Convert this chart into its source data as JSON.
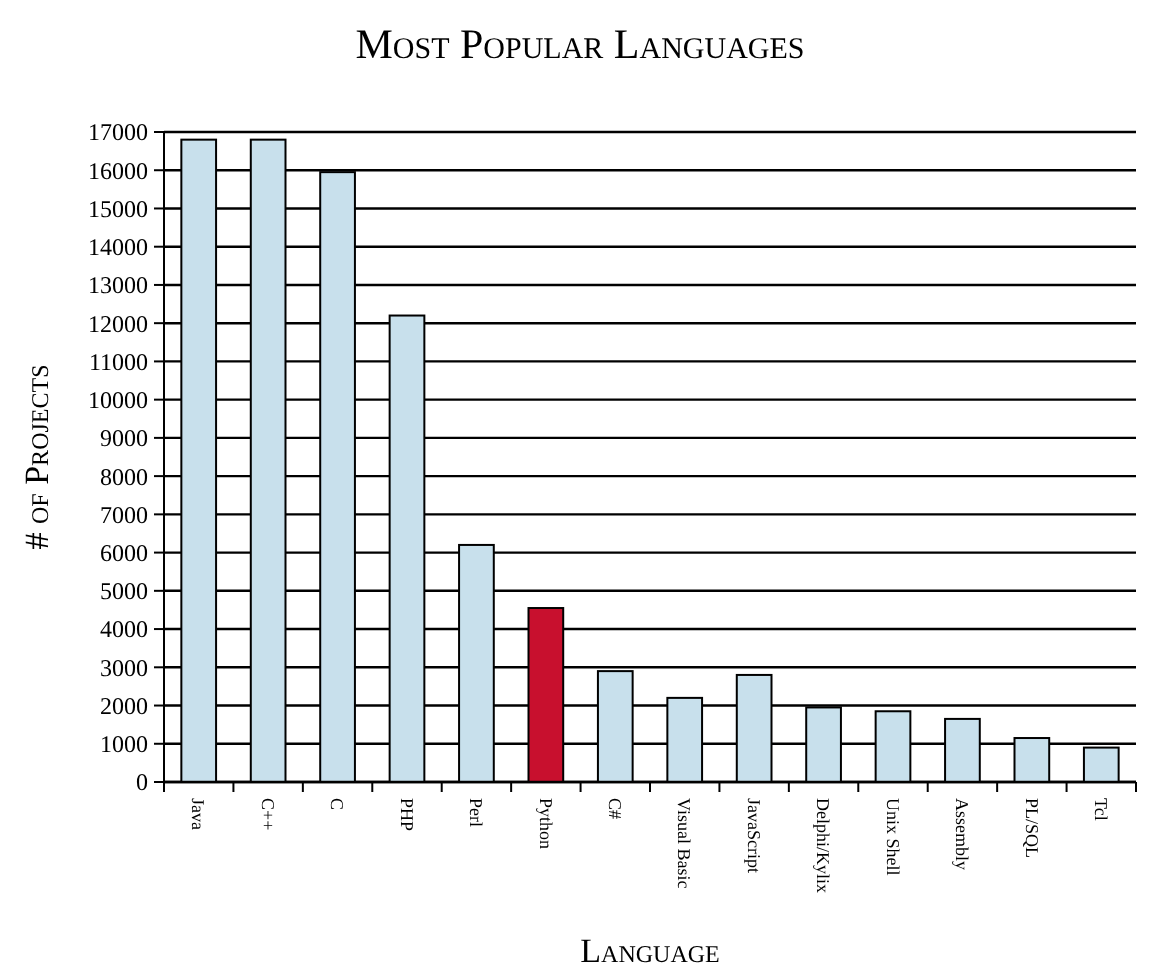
{
  "chart_data": {
    "type": "bar",
    "title": "Most Popular Languages",
    "xlabel": "Language",
    "ylabel": "# of Projects",
    "categories": [
      "Java",
      "C++",
      "C",
      "PHP",
      "Perl",
      "Python",
      "C#",
      "Visual Basic",
      "JavaScript",
      "Delphi/Kylix",
      "Unix Shell",
      "Assembly",
      "PL/SQL",
      "Tcl"
    ],
    "values": [
      16800,
      16800,
      15950,
      12200,
      6200,
      4550,
      2900,
      2200,
      2800,
      1950,
      1850,
      1650,
      1150,
      900
    ],
    "colors": [
      "#c8e0ec",
      "#c8e0ec",
      "#c8e0ec",
      "#c8e0ec",
      "#c8e0ec",
      "#c8102e",
      "#c8e0ec",
      "#c8e0ec",
      "#c8e0ec",
      "#c8e0ec",
      "#c8e0ec",
      "#c8e0ec",
      "#c8e0ec",
      "#c8e0ec"
    ],
    "ylim": [
      0,
      17000
    ],
    "yticks": [
      0,
      1000,
      2000,
      3000,
      4000,
      5000,
      6000,
      7000,
      8000,
      9000,
      10000,
      11000,
      12000,
      13000,
      14000,
      15000,
      16000,
      17000
    ],
    "grid": "y"
  }
}
